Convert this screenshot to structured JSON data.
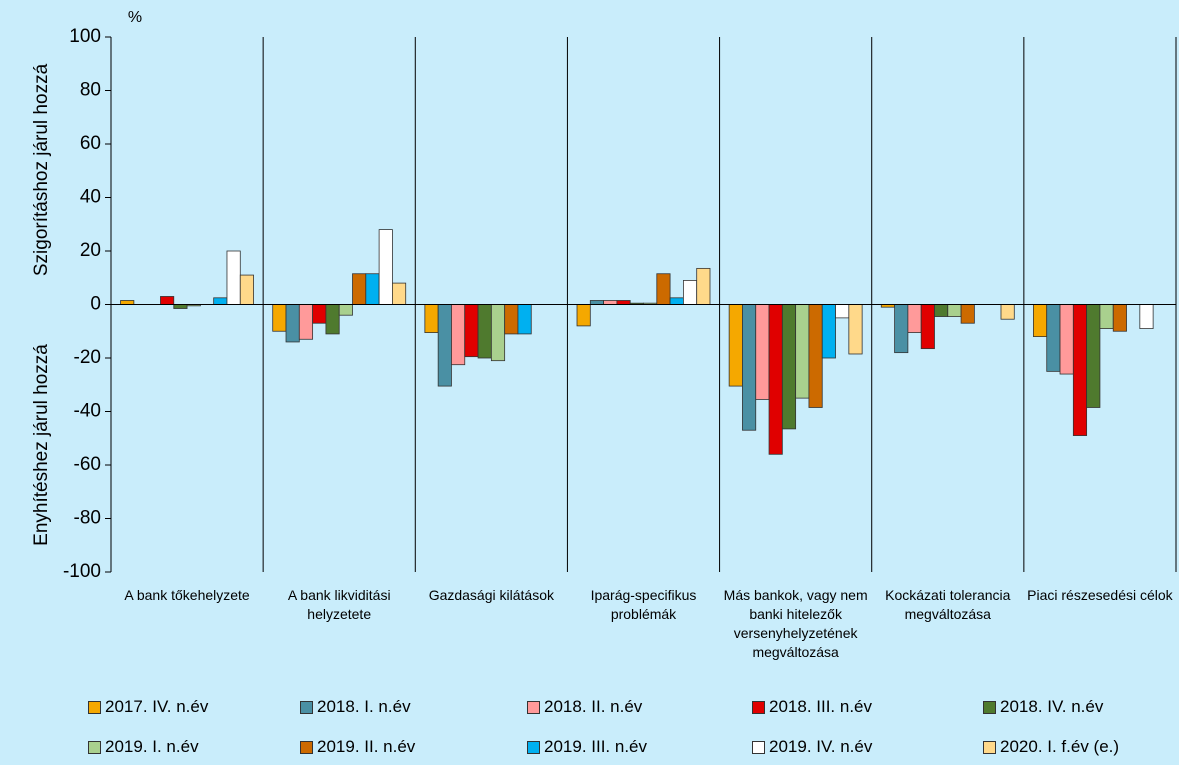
{
  "chart_data": {
    "type": "bar",
    "unit": "%",
    "y_label_upper": "Szigorításhoz járul hozzá",
    "y_label_lower": "Enyhítéshez járul hozzá",
    "categories": [
      "A bank tőkehelyzete",
      "A bank likviditási helyzetete",
      "Gazdasági kilátások",
      "Iparág-specifikus problémák",
      "Más bankok, vagy nem banki hitelezők versenyhelyzetének megváltozása",
      "Kockázati tolerancia megváltozása",
      "Piaci részesedési célok"
    ],
    "series": [
      {
        "name": "2017. IV. n.év",
        "color": "#f5a800",
        "values": [
          1.5,
          -10,
          -10.5,
          -8,
          -30.5,
          -1,
          -12
        ]
      },
      {
        "name": "2018. I. n.év",
        "color": "#4a90a4",
        "values": [
          0,
          -14,
          -30.5,
          1.5,
          -47,
          -18,
          -25
        ]
      },
      {
        "name": "2018. II. n.év",
        "color": "#ff9a9a",
        "values": [
          0,
          -13,
          -22.5,
          1.5,
          -35.5,
          -10.5,
          -26
        ]
      },
      {
        "name": "2018. III. n.év",
        "color": "#e00000",
        "values": [
          3,
          -7,
          -19.5,
          1.5,
          -56,
          -16.5,
          -49
        ]
      },
      {
        "name": "2018. IV. n.év",
        "color": "#4f7a2e",
        "values": [
          -1.5,
          -11,
          -20,
          0.5,
          -46.5,
          -4.5,
          -38.5
        ]
      },
      {
        "name": "2019. I. n.év",
        "color": "#a9d08e",
        "values": [
          -0.5,
          -4,
          -21,
          0.5,
          -35,
          -4.5,
          -9
        ]
      },
      {
        "name": "2019. II. n.év",
        "color": "#cc6a00",
        "values": [
          0,
          11.5,
          -11,
          11.5,
          -38.5,
          -7,
          -10
        ]
      },
      {
        "name": "2019. III. n.év",
        "color": "#00b0f0",
        "values": [
          2.5,
          11.5,
          -11,
          2.5,
          -20,
          0,
          0
        ]
      },
      {
        "name": "2019. IV. n.év",
        "color": "#ffffff",
        "values": [
          20,
          28,
          0,
          9,
          -5,
          0,
          -9
        ]
      },
      {
        "name": "2020. I. f.év (e.)",
        "color": "#ffd98a",
        "values": [
          11,
          8,
          0,
          13.5,
          -18.5,
          -5.5,
          0
        ]
      }
    ],
    "ylim": [
      -100,
      100
    ],
    "yticks": [
      -100,
      -80,
      -60,
      -40,
      -20,
      0,
      20,
      40,
      60,
      80,
      100
    ]
  }
}
